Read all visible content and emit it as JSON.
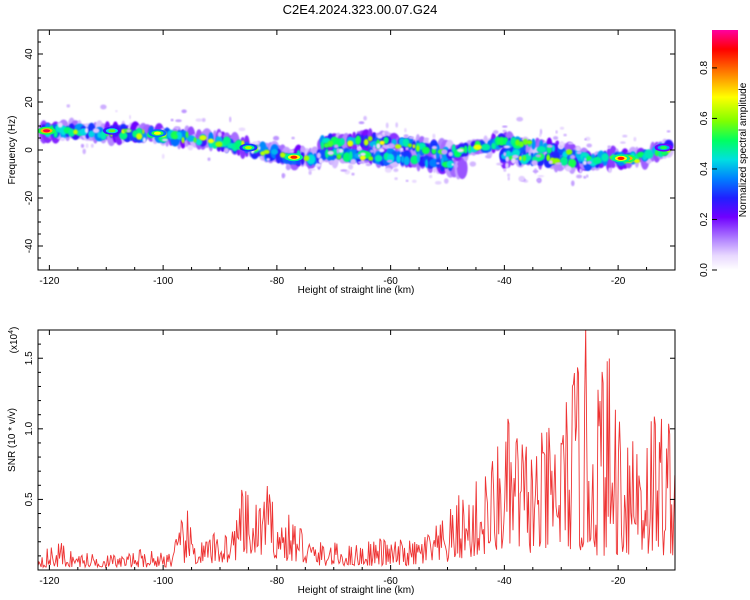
{
  "title": "C2E4.2024.323.00.07.G24",
  "colors": {
    "snr_line": "#ee3333",
    "axis": "#000000",
    "background": "#ffffff",
    "colormap": [
      "#ffffff",
      "#e8d8ff",
      "#b080ff",
      "#7000ff",
      "#2020ff",
      "#0080ff",
      "#00e0e0",
      "#00ff60",
      "#80ff00",
      "#ffff00",
      "#ff8000",
      "#ff0000",
      "#ff00a0"
    ]
  },
  "chart_data": [
    {
      "type": "heatmap",
      "xlabel": "Height of straight line (km)",
      "ylabel": "Frequency (Hz)",
      "xlim": [
        -122,
        -10
      ],
      "ylim": [
        -50,
        50
      ],
      "xticks": [
        -120,
        -100,
        -80,
        -60,
        -40,
        -20
      ],
      "yticks": [
        -40,
        -20,
        0,
        20,
        40
      ],
      "colorbar": {
        "label": "Normalized spectral amplitude",
        "range": [
          0,
          0.95
        ],
        "ticks": [
          0.0,
          0.2,
          0.4,
          0.6,
          0.8
        ]
      },
      "ridges": [
        {
          "x": [
            -121,
            -115,
            -110,
            -105,
            -100,
            -95,
            -90,
            -85,
            -80,
            -77,
            -74
          ],
          "freq": [
            8,
            8,
            7,
            7,
            6,
            5,
            3,
            1,
            -2,
            -3,
            -3
          ]
        },
        {
          "x": [
            -74,
            -70,
            -65,
            -60,
            -55,
            -50,
            -47
          ],
          "freq": [
            -3,
            -2,
            -2,
            -3,
            -4,
            -6,
            -8
          ]
        },
        {
          "x": [
            -72,
            -65,
            -60,
            -55,
            -50,
            -45,
            -40,
            -35,
            -30,
            -25,
            -20,
            -15,
            -11
          ],
          "freq": [
            3,
            4,
            3,
            1,
            -1,
            1,
            3,
            2,
            -1,
            -4,
            -4,
            -3,
            1
          ]
        },
        {
          "x": [
            -40,
            -35,
            -30,
            -25
          ],
          "freq": [
            -2,
            -3,
            -4,
            -5
          ]
        }
      ],
      "hotspots": [
        {
          "x": -120.5,
          "freq": 8,
          "amp": 0.95
        },
        {
          "x": -77,
          "freq": -3,
          "amp": 0.9
        },
        {
          "x": -18.5,
          "freq": -3.5,
          "amp": 0.95
        },
        {
          "x": -19.5,
          "freq": -3.5,
          "amp": 0.9
        },
        {
          "x": -101,
          "freq": 7,
          "amp": 0.75
        },
        {
          "x": -85,
          "freq": 1,
          "amp": 0.7
        },
        {
          "x": -109,
          "freq": 8,
          "amp": 0.65
        },
        {
          "x": -12,
          "freq": 1,
          "amp": 0.6
        }
      ]
    },
    {
      "type": "line",
      "xlabel": "Height of straight line (km)",
      "ylabel": "SNR (10 * v/v)",
      "y_multiplier": "(x10",
      "y_multiplier_exp": "4",
      "xlim": [
        -122,
        -10
      ],
      "ylim": [
        0,
        1.7
      ],
      "xticks": [
        -120,
        -100,
        -80,
        -60,
        -40,
        -20
      ],
      "yticks": [
        0.5,
        1.0,
        1.5
      ],
      "ytick_labels": [
        "0.5",
        "1.0",
        "1.5"
      ],
      "series": [
        {
          "x_start": -122,
          "x_step": 2,
          "envelope": [
            0.14,
            0.16,
            0.22,
            0.14,
            0.12,
            0.13,
            0.12,
            0.11,
            0.12,
            0.15,
            0.15,
            0.14,
            0.2,
            0.46,
            0.2,
            0.24,
            0.3,
            0.31,
            0.6,
            0.45,
            0.66,
            0.43,
            0.4,
            0.38,
            0.22,
            0.2,
            0.2,
            0.18,
            0.19,
            0.22,
            0.24,
            0.21,
            0.22,
            0.21,
            0.28,
            0.32,
            0.4,
            0.55,
            0.58,
            0.71,
            0.85,
            1.07,
            1.12,
            0.95,
            0.95,
            1.04,
            1.19,
            1.44,
            1.74,
            1.62,
            1.58,
            1.4,
            1.3,
            1.28,
            1.25,
            1.22
          ],
          "floor": [
            0.02,
            0.02,
            0.02,
            0.02,
            0.02,
            0.02,
            0.02,
            0.02,
            0.02,
            0.02,
            0.02,
            0.02,
            0.02,
            0.05,
            0.04,
            0.04,
            0.05,
            0.05,
            0.1,
            0.08,
            0.12,
            0.08,
            0.06,
            0.05,
            0.03,
            0.03,
            0.03,
            0.03,
            0.03,
            0.03,
            0.03,
            0.03,
            0.03,
            0.03,
            0.04,
            0.04,
            0.05,
            0.08,
            0.08,
            0.1,
            0.12,
            0.14,
            0.15,
            0.12,
            0.12,
            0.13,
            0.14,
            0.14,
            0.12,
            0.1,
            0.1,
            0.1,
            0.1,
            0.1,
            0.1,
            0.1
          ]
        }
      ]
    }
  ]
}
